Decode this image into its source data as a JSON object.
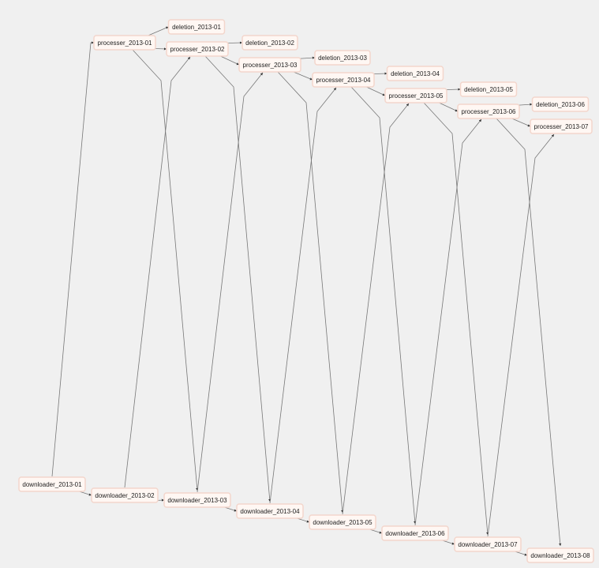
{
  "nodes": [
    {
      "label": "deletion_2013-01"
    },
    {
      "label": "processer_2013-01"
    },
    {
      "label": "processer_2013-02"
    },
    {
      "label": "deletion_2013-02"
    },
    {
      "label": "processer_2013-03"
    },
    {
      "label": "deletion_2013-03"
    },
    {
      "label": "processer_2013-04"
    },
    {
      "label": "deletion_2013-04"
    },
    {
      "label": "processer_2013-05"
    },
    {
      "label": "deletion_2013-05"
    },
    {
      "label": "processer_2013-06"
    },
    {
      "label": "deletion_2013-06"
    },
    {
      "label": "processer_2013-07"
    },
    {
      "label": "downloader_2013-01"
    },
    {
      "label": "downloader_2013-02"
    },
    {
      "label": "downloader_2013-03"
    },
    {
      "label": "downloader_2013-04"
    },
    {
      "label": "downloader_2013-05"
    },
    {
      "label": "downloader_2013-06"
    },
    {
      "label": "downloader_2013-07"
    },
    {
      "label": "downloader_2013-08"
    }
  ]
}
